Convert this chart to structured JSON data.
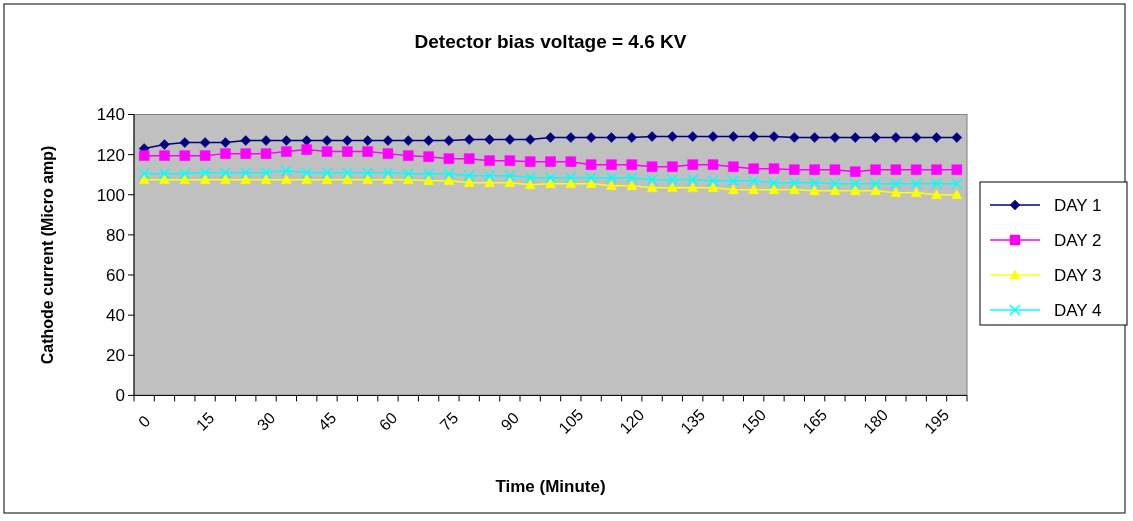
{
  "chart_data": {
    "type": "line",
    "title": "Detector bias voltage = 4.6 KV",
    "xlabel": "Time (Minute)",
    "ylabel": "Cathode current (Micro amp)",
    "categories": [
      "0",
      null,
      null,
      "15",
      null,
      null,
      "30",
      null,
      null,
      "45",
      null,
      null,
      "60",
      null,
      null,
      "75",
      null,
      null,
      "90",
      null,
      null,
      "105",
      null,
      null,
      "120",
      null,
      null,
      "135",
      null,
      null,
      "150",
      null,
      null,
      "165",
      null,
      null,
      "180",
      null,
      null,
      "195",
      null
    ],
    "ylim": [
      0,
      140
    ],
    "yticks": [
      0,
      20,
      40,
      60,
      80,
      100,
      120,
      140
    ],
    "grid": false,
    "legend": "right",
    "series": [
      {
        "name": "DAY 1",
        "color": "#000080",
        "marker": "diamond",
        "values": [
          123,
          125,
          126,
          126,
          126,
          127,
          127,
          127,
          127,
          127,
          127,
          127,
          127,
          127,
          127,
          127,
          127.5,
          127.5,
          127.5,
          127.5,
          128.5,
          128.5,
          128.5,
          128.5,
          128.5,
          129,
          129,
          129,
          129,
          129,
          129,
          129,
          128.5,
          128.5,
          128.5,
          128.5,
          128.5,
          128.5,
          128.5,
          128.5,
          128.5
        ]
      },
      {
        "name": "DAY 2",
        "color": "#ff00ff",
        "marker": "square",
        "values": [
          119.5,
          119.5,
          119.5,
          119.5,
          120.5,
          120.5,
          120.5,
          121.5,
          122.5,
          121.5,
          121.5,
          121.5,
          120.5,
          119.5,
          119,
          118,
          118,
          117,
          117,
          116.5,
          116.5,
          116.5,
          115,
          115,
          115,
          114,
          114,
          115,
          115,
          114,
          113,
          113,
          112.5,
          112.5,
          112.5,
          111.5,
          112.5,
          112.5,
          112.5,
          112.5,
          112.5
        ]
      },
      {
        "name": "DAY 3",
        "color": "#ffff00",
        "marker": "triangle",
        "values": [
          107.5,
          107.5,
          107.5,
          107.5,
          107.5,
          107.5,
          107.5,
          107.5,
          107.5,
          107.5,
          107.5,
          107.5,
          107.5,
          107.5,
          107,
          107,
          106,
          106,
          106,
          105,
          105.5,
          105.5,
          105.5,
          104.5,
          104.5,
          103.5,
          103.5,
          103.5,
          103.5,
          102.5,
          102.5,
          102.5,
          102.5,
          102,
          102,
          102,
          102,
          101,
          101,
          100,
          100
        ]
      },
      {
        "name": "DAY 4",
        "color": "#00ffff",
        "marker": "cross",
        "values": [
          110.5,
          110.5,
          110.5,
          111,
          111,
          111,
          111,
          112,
          111,
          111,
          111,
          111,
          111,
          110.5,
          110.5,
          110.5,
          109.5,
          109.5,
          109.5,
          108.5,
          108.5,
          108.5,
          108.5,
          108.5,
          108.5,
          107.5,
          107.5,
          107.5,
          107,
          107,
          107,
          106,
          106,
          106,
          105.5,
          105.5,
          105.5,
          105.5,
          105.5,
          105.5,
          105.5
        ]
      }
    ]
  }
}
